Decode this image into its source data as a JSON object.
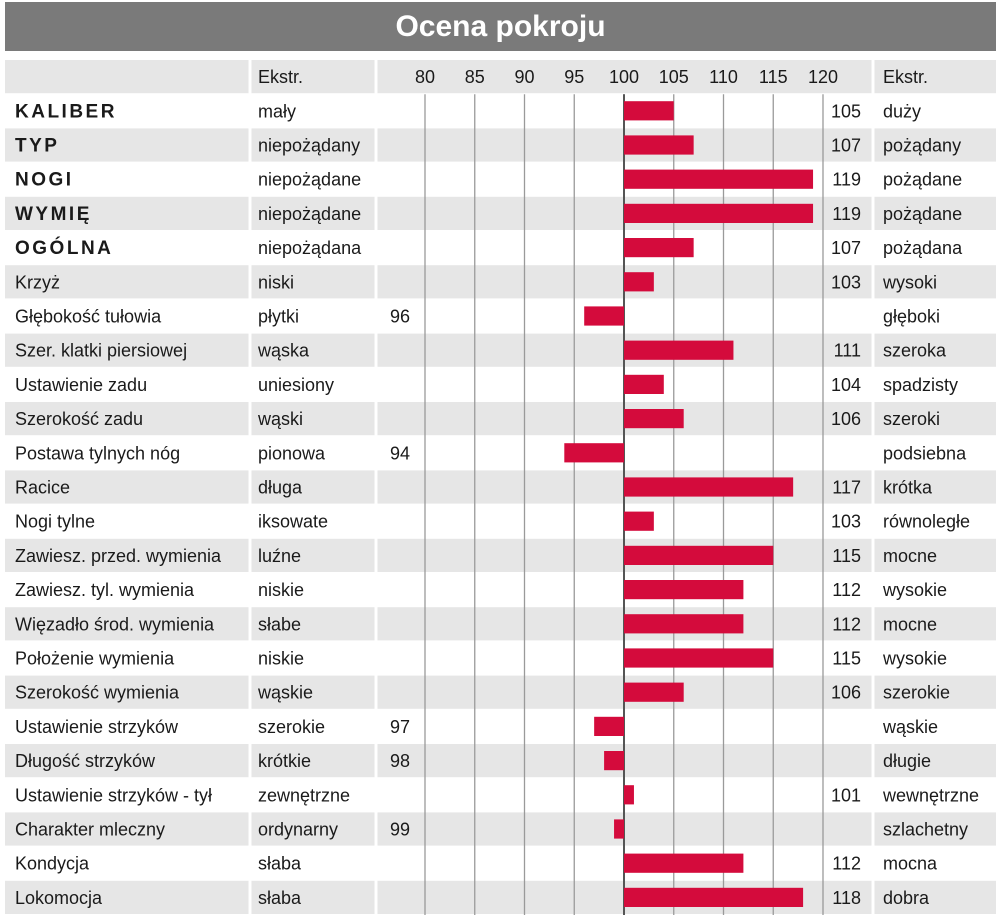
{
  "title": "Ocena pokroju",
  "headers": {
    "extreme_left": "Ekstr.",
    "extreme_right": "Ekstr."
  },
  "colors": {
    "bar": "#d40b3c",
    "row_shade": "#e6e6e6",
    "title_bg": "#7a7a7a",
    "grid": "#9a9a9a"
  },
  "chart_data": {
    "type": "bar",
    "orientation": "horizontal",
    "title": "Ocena pokroju",
    "baseline": 100,
    "xlim": [
      77,
      122
    ],
    "x_ticks": [
      80,
      85,
      90,
      95,
      100,
      105,
      110,
      115,
      120
    ],
    "grid": true,
    "rows": [
      {
        "trait": "KALIBER",
        "bold": true,
        "low": "mały",
        "high": "duży",
        "value": 105
      },
      {
        "trait": "TYP",
        "bold": true,
        "low": "niepożądany",
        "high": "pożądany",
        "value": 107
      },
      {
        "trait": "NOGI",
        "bold": true,
        "low": "niepożądane",
        "high": "pożądane",
        "value": 119
      },
      {
        "trait": "WYMIĘ",
        "bold": true,
        "low": "niepożądane",
        "high": "pożądane",
        "value": 119
      },
      {
        "trait": "OGÓLNA",
        "bold": true,
        "low": "niepożądana",
        "high": "pożądana",
        "value": 107
      },
      {
        "trait": "Krzyż",
        "bold": false,
        "low": "niski",
        "high": "wysoki",
        "value": 103
      },
      {
        "trait": "Głębokość tułowia",
        "bold": false,
        "low": "płytki",
        "high": "głęboki",
        "value": 96
      },
      {
        "trait": "Szer. klatki piersiowej",
        "bold": false,
        "low": "wąska",
        "high": "szeroka",
        "value": 111
      },
      {
        "trait": "Ustawienie zadu",
        "bold": false,
        "low": "uniesiony",
        "high": "spadzisty",
        "value": 104
      },
      {
        "trait": "Szerokość zadu",
        "bold": false,
        "low": "wąski",
        "high": "szeroki",
        "value": 106
      },
      {
        "trait": "Postawa tylnych nóg",
        "bold": false,
        "low": "pionowa",
        "high": "podsiebna",
        "value": 94
      },
      {
        "trait": "Racice",
        "bold": false,
        "low": "długa",
        "high": "krótka",
        "value": 117
      },
      {
        "trait": "Nogi tylne",
        "bold": false,
        "low": "iksowate",
        "high": "równoległe",
        "value": 103
      },
      {
        "trait": "Zawiesz. przed. wymienia",
        "bold": false,
        "low": "luźne",
        "high": "mocne",
        "value": 115
      },
      {
        "trait": "Zawiesz. tyl. wymienia",
        "bold": false,
        "low": "niskie",
        "high": "wysokie",
        "value": 112
      },
      {
        "trait": "Więzadło środ. wymienia",
        "bold": false,
        "low": "słabe",
        "high": "mocne",
        "value": 112
      },
      {
        "trait": "Położenie wymienia",
        "bold": false,
        "low": "niskie",
        "high": "wysokie",
        "value": 115
      },
      {
        "trait": "Szerokość wymienia",
        "bold": false,
        "low": "wąskie",
        "high": "szerokie",
        "value": 106
      },
      {
        "trait": "Ustawienie strzyków",
        "bold": false,
        "low": "szerokie",
        "high": "wąskie",
        "value": 97
      },
      {
        "trait": "Długość strzyków",
        "bold": false,
        "low": "krótkie",
        "high": "długie",
        "value": 98
      },
      {
        "trait": "Ustawienie strzyków - tył",
        "bold": false,
        "low": "zewnętrzne",
        "high": "wewnętrzne",
        "value": 101
      },
      {
        "trait": "Charakter mleczny",
        "bold": false,
        "low": "ordynarny",
        "high": "szlachetny",
        "value": 99
      },
      {
        "trait": "Kondycja",
        "bold": false,
        "low": "słaba",
        "high": "mocna",
        "value": 112
      },
      {
        "trait": "Lokomocja",
        "bold": false,
        "low": "słaba",
        "high": "dobra",
        "value": 118
      }
    ]
  }
}
